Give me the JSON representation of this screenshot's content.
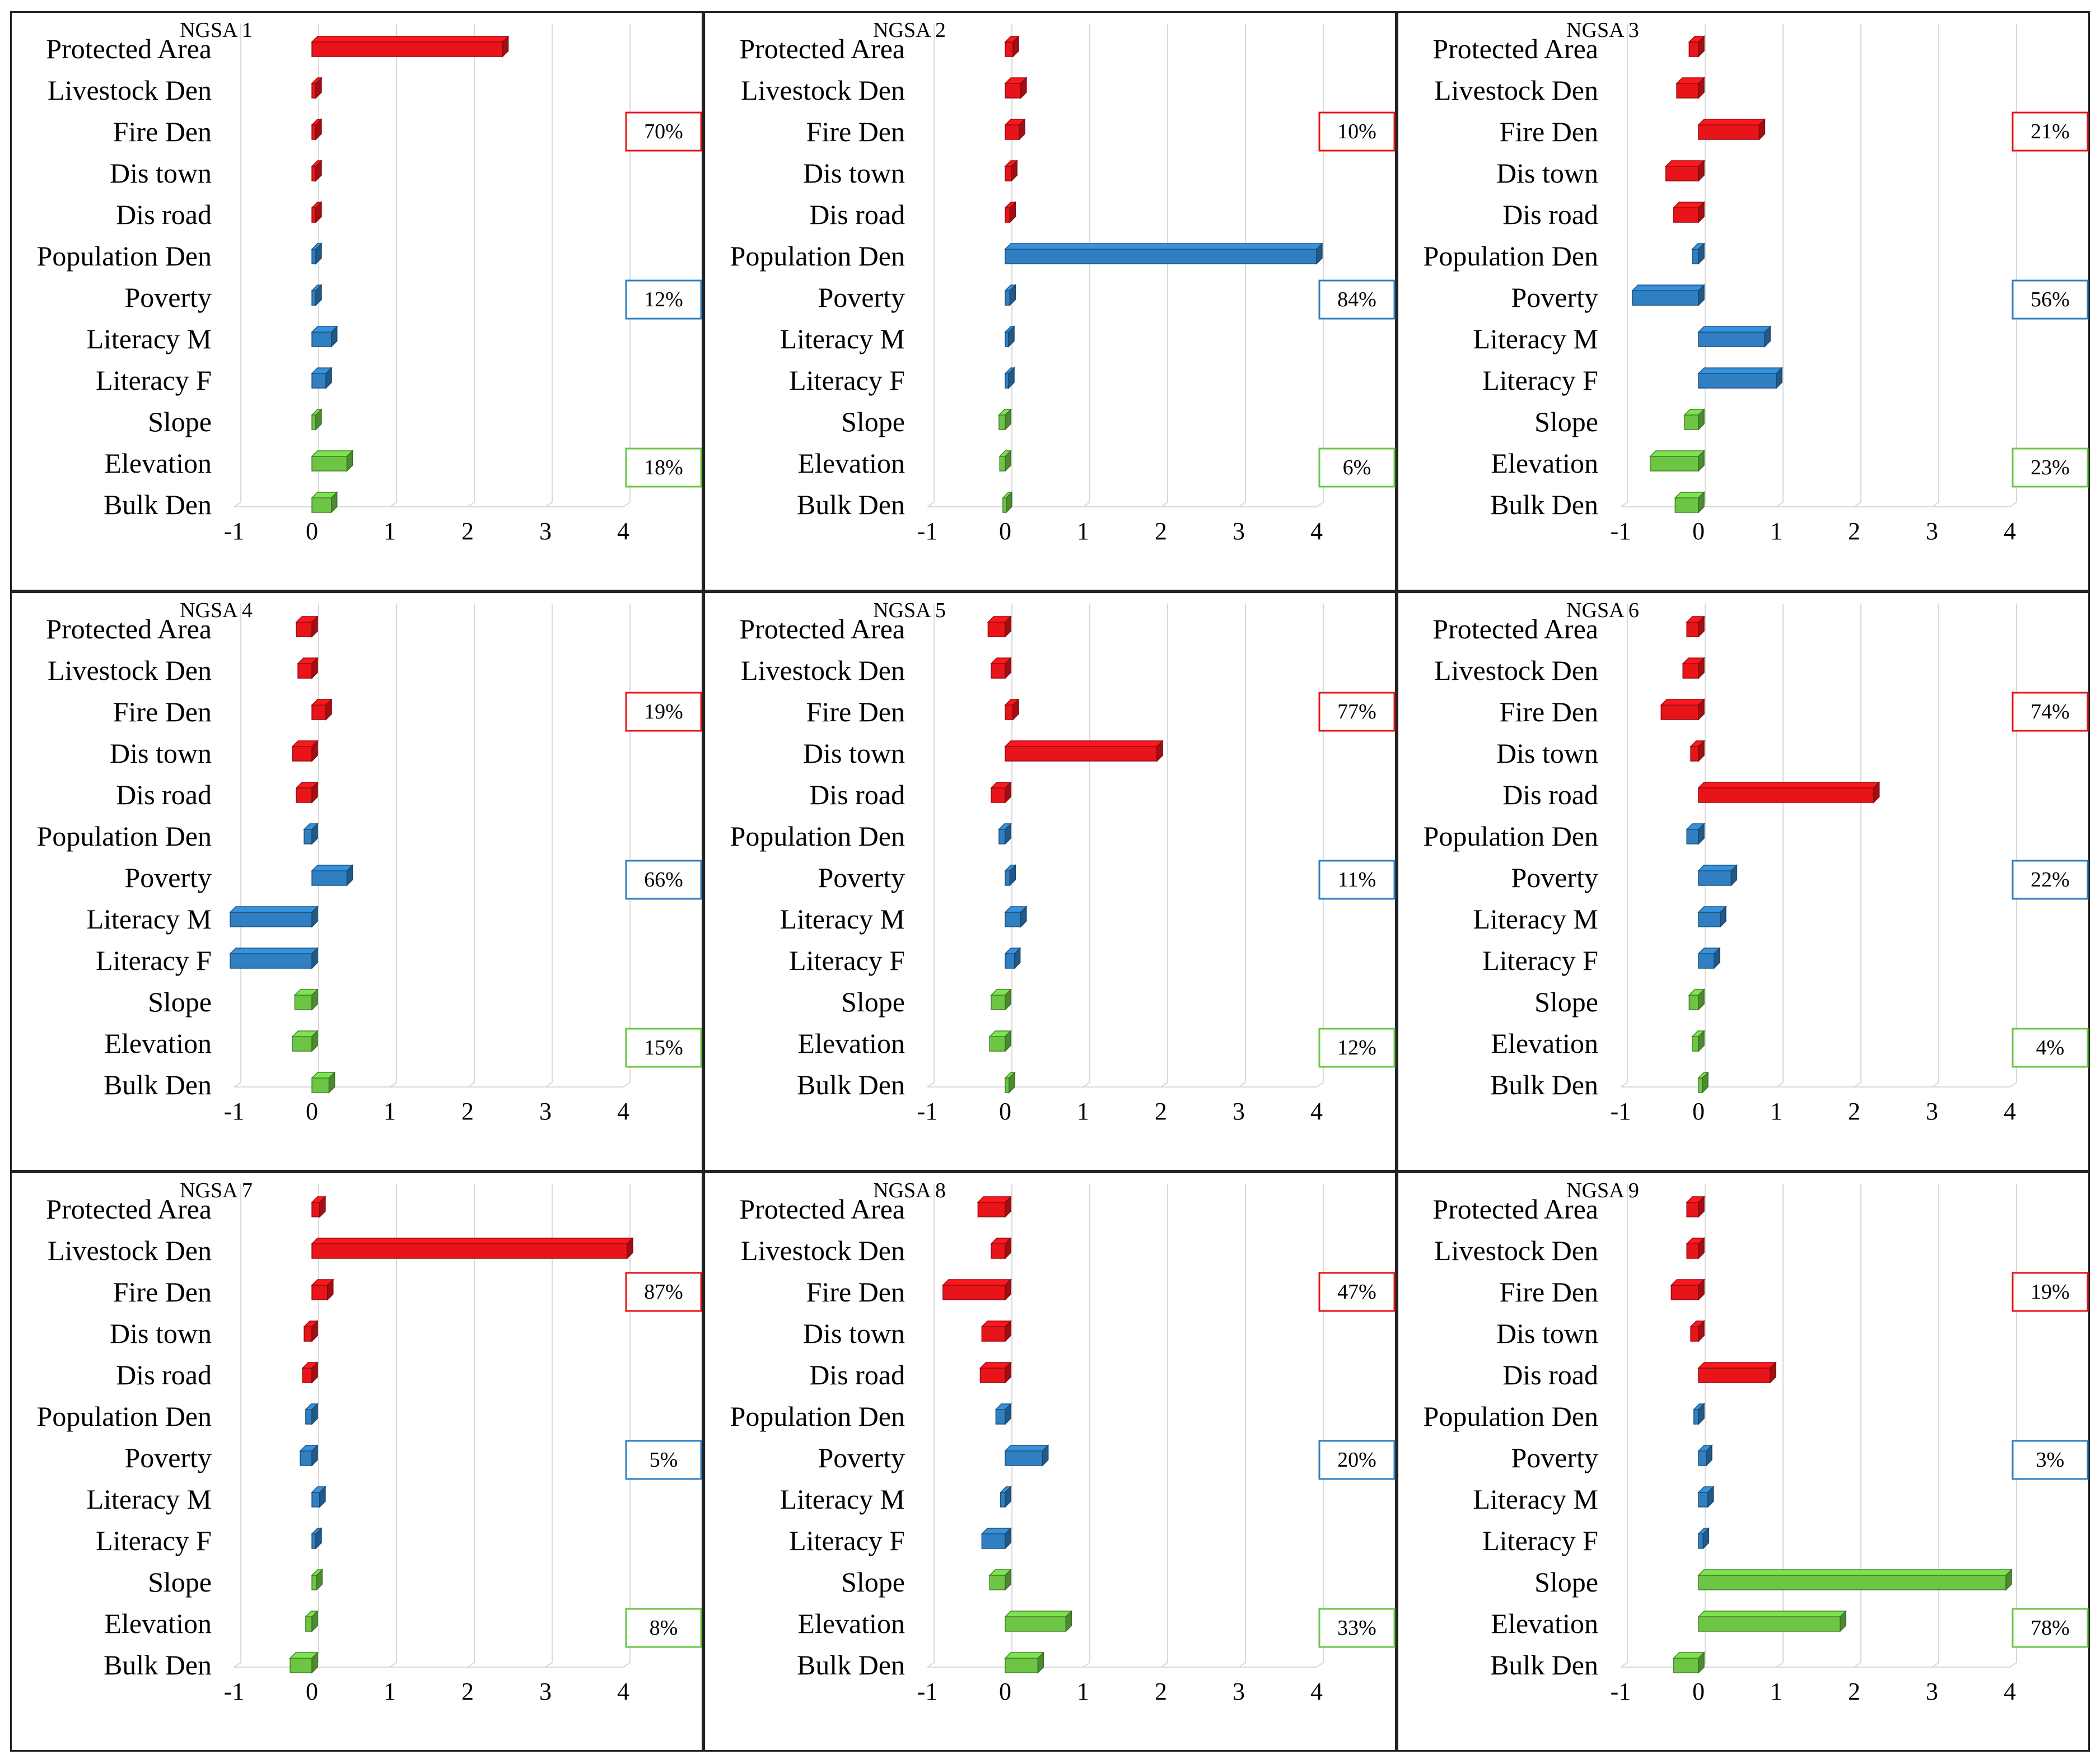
{
  "chart_data": [
    {
      "type": "bar",
      "title": "NGSA 1",
      "categories": [
        "Protected Area",
        "Livestock Den",
        "Fire Den",
        "Dis town",
        "Dis road",
        "Population Den",
        "Poverty",
        "Literacy M",
        "Literacy F",
        "Slope",
        "Elevation",
        "Bulk Den"
      ],
      "values": [
        2.45,
        0.05,
        0.05,
        0.05,
        0.05,
        0.05,
        0.05,
        0.25,
        0.18,
        0.05,
        0.45,
        0.25
      ],
      "group_colors": [
        "#e8141a",
        "#e8141a",
        "#e8141a",
        "#e8141a",
        "#e8141a",
        "#2f7fc2",
        "#2f7fc2",
        "#2f7fc2",
        "#2f7fc2",
        "#6cc644",
        "#6cc644",
        "#6cc644"
      ],
      "xlim": [
        -1,
        4
      ],
      "xticks": [
        "-1",
        "0",
        "1",
        "2",
        "3",
        "4"
      ],
      "pct": [
        "70%",
        "12%",
        "18%"
      ]
    },
    {
      "type": "bar",
      "title": "NGSA 2",
      "categories": [
        "Protected Area",
        "Livestock Den",
        "Fire Den",
        "Dis town",
        "Dis road",
        "Population Den",
        "Poverty",
        "Literacy M",
        "Literacy F",
        "Slope",
        "Elevation",
        "Bulk Den"
      ],
      "values": [
        0.1,
        0.2,
        0.18,
        0.08,
        0.06,
        4.0,
        0.06,
        0.04,
        0.04,
        -0.08,
        -0.07,
        -0.03
      ],
      "group_colors": [
        "#e8141a",
        "#e8141a",
        "#e8141a",
        "#e8141a",
        "#e8141a",
        "#2f7fc2",
        "#2f7fc2",
        "#2f7fc2",
        "#2f7fc2",
        "#6cc644",
        "#6cc644",
        "#6cc644"
      ],
      "xlim": [
        -1,
        4
      ],
      "xticks": [
        "-1",
        "0",
        "1",
        "2",
        "3",
        "4"
      ],
      "pct": [
        "10%",
        "84%",
        "6%"
      ]
    },
    {
      "type": "bar",
      "title": "NGSA 3",
      "categories": [
        "Protected Area",
        "Livestock Den",
        "Fire Den",
        "Dis town",
        "Dis road",
        "Population Den",
        "Poverty",
        "Literacy M",
        "Literacy F",
        "Slope",
        "Elevation",
        "Bulk Den"
      ],
      "values": [
        -0.12,
        -0.28,
        0.78,
        -0.42,
        -0.32,
        -0.08,
        -0.85,
        0.85,
        1.0,
        -0.18,
        -0.62,
        -0.3
      ],
      "group_colors": [
        "#e8141a",
        "#e8141a",
        "#e8141a",
        "#e8141a",
        "#e8141a",
        "#2f7fc2",
        "#2f7fc2",
        "#2f7fc2",
        "#2f7fc2",
        "#6cc644",
        "#6cc644",
        "#6cc644"
      ],
      "xlim": [
        -1,
        4
      ],
      "xticks": [
        "-1",
        "0",
        "1",
        "2",
        "3",
        "4"
      ],
      "pct": [
        "21%",
        "56%",
        "23%"
      ]
    },
    {
      "type": "bar",
      "title": "NGSA 4",
      "categories": [
        "Protected Area",
        "Livestock Den",
        "Fire Den",
        "Dis town",
        "Dis road",
        "Population Den",
        "Poverty",
        "Literacy M",
        "Literacy F",
        "Slope",
        "Elevation",
        "Bulk Den"
      ],
      "values": [
        -0.2,
        -0.18,
        0.18,
        -0.25,
        -0.2,
        -0.1,
        0.45,
        -1.05,
        -1.05,
        -0.22,
        -0.25,
        0.22
      ],
      "group_colors": [
        "#e8141a",
        "#e8141a",
        "#e8141a",
        "#e8141a",
        "#e8141a",
        "#2f7fc2",
        "#2f7fc2",
        "#2f7fc2",
        "#2f7fc2",
        "#6cc644",
        "#6cc644",
        "#6cc644"
      ],
      "xlim": [
        -1,
        4
      ],
      "xticks": [
        "-1",
        "0",
        "1",
        "2",
        "3",
        "4"
      ],
      "pct": [
        "19%",
        "66%",
        "15%"
      ]
    },
    {
      "type": "bar",
      "title": "NGSA 5",
      "categories": [
        "Protected Area",
        "Livestock Den",
        "Fire Den",
        "Dis town",
        "Dis road",
        "Population Den",
        "Poverty",
        "Literacy M",
        "Literacy F",
        "Slope",
        "Elevation",
        "Bulk Den"
      ],
      "values": [
        -0.22,
        -0.18,
        0.1,
        1.95,
        -0.18,
        -0.08,
        0.06,
        0.2,
        0.12,
        -0.18,
        -0.2,
        0.05
      ],
      "group_colors": [
        "#e8141a",
        "#e8141a",
        "#e8141a",
        "#e8141a",
        "#e8141a",
        "#2f7fc2",
        "#2f7fc2",
        "#2f7fc2",
        "#2f7fc2",
        "#6cc644",
        "#6cc644",
        "#6cc644"
      ],
      "xlim": [
        -1,
        4
      ],
      "xticks": [
        "-1",
        "0",
        "1",
        "2",
        "3",
        "4"
      ],
      "pct": [
        "77%",
        "11%",
        "12%"
      ]
    },
    {
      "type": "bar",
      "title": "NGSA 6",
      "categories": [
        "Protected Area",
        "Livestock Den",
        "Fire Den",
        "Dis town",
        "Dis road",
        "Population Den",
        "Poverty",
        "Literacy M",
        "Literacy F",
        "Slope",
        "Elevation",
        "Bulk Den"
      ],
      "values": [
        -0.15,
        -0.2,
        -0.48,
        -0.1,
        2.25,
        -0.15,
        0.42,
        0.28,
        0.2,
        -0.12,
        -0.08,
        0.05
      ],
      "group_colors": [
        "#e8141a",
        "#e8141a",
        "#e8141a",
        "#e8141a",
        "#e8141a",
        "#2f7fc2",
        "#2f7fc2",
        "#2f7fc2",
        "#2f7fc2",
        "#6cc644",
        "#6cc644",
        "#6cc644"
      ],
      "xlim": [
        -1,
        4
      ],
      "xticks": [
        "-1",
        "0",
        "1",
        "2",
        "3",
        "4"
      ],
      "pct": [
        "74%",
        "22%",
        "4%"
      ]
    },
    {
      "type": "bar",
      "title": "NGSA 7",
      "categories": [
        "Protected Area",
        "Livestock Den",
        "Fire Den",
        "Dis town",
        "Dis road",
        "Population Den",
        "Poverty",
        "Literacy M",
        "Literacy F",
        "Slope",
        "Elevation",
        "Bulk Den"
      ],
      "values": [
        0.1,
        4.05,
        0.2,
        -0.1,
        -0.12,
        -0.08,
        -0.15,
        0.1,
        0.05,
        0.06,
        -0.08,
        -0.28
      ],
      "group_colors": [
        "#e8141a",
        "#e8141a",
        "#e8141a",
        "#e8141a",
        "#e8141a",
        "#2f7fc2",
        "#2f7fc2",
        "#2f7fc2",
        "#2f7fc2",
        "#6cc644",
        "#6cc644",
        "#6cc644"
      ],
      "xlim": [
        -1,
        4
      ],
      "xticks": [
        "-1",
        "0",
        "1",
        "2",
        "3",
        "4"
      ],
      "pct": [
        "87%",
        "5%",
        "8%"
      ]
    },
    {
      "type": "bar",
      "title": "NGSA 8",
      "categories": [
        "Protected Area",
        "Livestock Den",
        "Fire Den",
        "Dis town",
        "Dis road",
        "Population Den",
        "Poverty",
        "Literacy M",
        "Literacy F",
        "Slope",
        "Elevation",
        "Bulk Den"
      ],
      "values": [
        -0.35,
        -0.18,
        -0.8,
        -0.3,
        -0.32,
        -0.12,
        0.48,
        -0.06,
        -0.3,
        -0.2,
        0.78,
        0.42
      ],
      "group_colors": [
        "#e8141a",
        "#e8141a",
        "#e8141a",
        "#e8141a",
        "#e8141a",
        "#2f7fc2",
        "#2f7fc2",
        "#2f7fc2",
        "#2f7fc2",
        "#6cc644",
        "#6cc644",
        "#6cc644"
      ],
      "xlim": [
        -1,
        4
      ],
      "xticks": [
        "-1",
        "0",
        "1",
        "2",
        "3",
        "4"
      ],
      "pct": [
        "47%",
        "20%",
        "33%"
      ]
    },
    {
      "type": "bar",
      "title": "NGSA 9",
      "categories": [
        "Protected Area",
        "Livestock Den",
        "Fire Den",
        "Dis town",
        "Dis road",
        "Population Den",
        "Poverty",
        "Literacy M",
        "Literacy F",
        "Slope",
        "Elevation",
        "Bulk Den"
      ],
      "values": [
        -0.15,
        -0.15,
        -0.35,
        -0.1,
        0.92,
        -0.06,
        0.1,
        0.12,
        0.06,
        3.95,
        1.82,
        -0.32
      ],
      "group_colors": [
        "#e8141a",
        "#e8141a",
        "#e8141a",
        "#e8141a",
        "#e8141a",
        "#2f7fc2",
        "#2f7fc2",
        "#2f7fc2",
        "#2f7fc2",
        "#6cc644",
        "#6cc644",
        "#6cc644"
      ],
      "xlim": [
        -1,
        4
      ],
      "xticks": [
        "-1",
        "0",
        "1",
        "2",
        "3",
        "4"
      ],
      "pct": [
        "19%",
        "3%",
        "78%"
      ]
    }
  ],
  "colors": {
    "red": "#e8141a",
    "blue": "#2f7fc2",
    "green": "#6cc644",
    "grid": "#d9d9d9",
    "border": "#222222"
  }
}
